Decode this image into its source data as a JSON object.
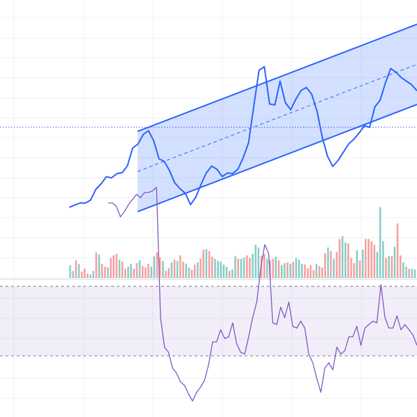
{
  "colors": {
    "background": "#ffffff",
    "grid": "#eef0f3",
    "price_line": "#2962ff",
    "channel_fill": "#2962ff",
    "channel_border": "#2962ff",
    "ref_line": "#2962ff",
    "volume_up": "#26a69a",
    "volume_down": "#ef5350",
    "rsi_line": "#7e57c2",
    "rsi_band_fill": "#7e57c2",
    "rsi_band_border": "#787b86"
  },
  "chart_data": [
    {
      "type": "line",
      "title": "",
      "xlabel": "",
      "ylabel": "",
      "grid": true,
      "legend": "none",
      "tick_labels": [],
      "index_range": [
        0,
        120
      ],
      "value_range": [
        0,
        100
      ],
      "reference_line_value": 76.5,
      "series": [
        {
          "values": [
            32.2,
            33.5,
            34.6,
            34.5,
            36.2,
            42.1,
            45.2,
            49.1,
            48.5,
            50.8,
            51.4,
            55.1,
            65,
            67.2,
            72.5,
            74.6,
            69,
            59,
            57.6,
            52.5,
            45.7,
            42.5,
            39.9,
            33.7,
            37.9,
            45,
            51.3,
            55,
            53.3,
            49.2,
            51.2,
            50.9,
            53.3,
            59.7,
            67.9,
            88.3,
            108,
            110,
            89.4,
            88.9,
            102,
            90.1,
            86.2,
            92.1,
            96.9,
            98.5,
            94.8,
            85.5,
            71.1,
            60.5,
            54.8,
            58.1,
            62.6,
            67.2,
            69.9,
            73.3,
            77.3,
            76.5,
            87.8,
            91.5,
            101,
            109,
            107,
            104,
            102,
            100,
            96.7
          ]
        }
      ],
      "channel": {
        "upper": {
          "start_value": 74.2,
          "end_value": 133.5
        },
        "lower": {
          "start_value": 29.8,
          "end_value": 89.1
        },
        "median": {
          "start_value": 52,
          "end_value": 111.3
        }
      }
    },
    {
      "type": "bar",
      "title": "",
      "legend": "none",
      "value_range": [
        0,
        100
      ],
      "series": [
        {
          "name": "",
          "values": [
            18,
            10,
            25,
            20,
            9,
            13,
            6,
            5,
            10,
            36,
            33,
            20,
            16,
            15,
            28,
            32,
            34,
            26,
            23,
            13,
            16,
            20,
            13,
            21,
            25,
            17,
            15,
            20,
            16,
            31,
            36,
            29,
            24,
            10,
            14,
            22,
            26,
            24,
            32,
            23,
            20,
            15,
            12,
            19,
            22,
            27,
            40,
            41,
            38,
            30,
            27,
            24,
            23,
            19,
            16,
            10,
            12,
            31,
            27,
            27,
            29,
            32,
            28,
            34,
            47,
            43,
            31,
            34,
            27,
            25,
            27,
            30,
            25,
            18,
            21,
            22,
            20,
            23,
            28,
            26,
            20,
            19,
            14,
            18,
            11,
            20,
            17,
            15,
            35,
            43,
            38,
            27,
            37,
            55,
            59,
            50,
            49,
            28,
            21,
            39,
            25,
            40,
            55,
            55,
            52,
            47,
            37,
            100,
            52,
            28,
            31,
            31,
            44,
            77,
            32,
            22,
            16,
            13,
            13,
            12
          ],
          "colors": [
            "up",
            "up",
            "down",
            "up",
            "down",
            "down",
            "down",
            "up",
            "up",
            "down",
            "up",
            "down",
            "down",
            "up",
            "down",
            "down",
            "down",
            "up",
            "down",
            "down",
            "up",
            "up",
            "down",
            "down",
            "up",
            "down",
            "down",
            "down",
            "up",
            "up",
            "down",
            "down",
            "up",
            "down",
            "down",
            "up",
            "down",
            "up",
            "down",
            "down",
            "up",
            "up",
            "down",
            "down",
            "up",
            "down",
            "down",
            "up",
            "down",
            "down",
            "up",
            "up",
            "up",
            "up",
            "up",
            "down",
            "up",
            "up",
            "down",
            "up",
            "up",
            "down",
            "down",
            "up",
            "up",
            "up",
            "down",
            "down",
            "up",
            "down",
            "down",
            "up",
            "down",
            "up",
            "up",
            "down",
            "up",
            "down",
            "up",
            "up",
            "up",
            "down",
            "down",
            "down",
            "down",
            "up",
            "down",
            "down",
            "down",
            "up",
            "down",
            "up",
            "down",
            "down",
            "up",
            "up",
            "down",
            "down",
            "down",
            "up",
            "down",
            "up",
            "down",
            "down",
            "down",
            "down",
            "up",
            "up",
            "up",
            "down",
            "up",
            "down",
            "up",
            "down",
            "down",
            "up",
            "up",
            "down",
            "up",
            "up"
          ]
        }
      ]
    },
    {
      "type": "line",
      "title": "",
      "legend": "none",
      "value_range": [
        0,
        100
      ],
      "bands": [
        {
          "from": 30,
          "to": 70
        }
      ],
      "series": [
        {
          "values": [
            118,
            118,
            116,
            110,
            113,
            117,
            120,
            123,
            121,
            124,
            124,
            125,
            127,
            52,
            35,
            32,
            23,
            20,
            15,
            13,
            8,
            4,
            9,
            12,
            16,
            25,
            38,
            38,
            45,
            40,
            41,
            49,
            37,
            32,
            31,
            41,
            52,
            61,
            80,
            94,
            89,
            49,
            48,
            58,
            52,
            61,
            47,
            46,
            50,
            46,
            31,
            26,
            17,
            9,
            23,
            26,
            22,
            35,
            31,
            33,
            41,
            41,
            47,
            36,
            46,
            48,
            50,
            49,
            71,
            52,
            46,
            46,
            53,
            45,
            48,
            45,
            42,
            36
          ]
        }
      ]
    }
  ]
}
